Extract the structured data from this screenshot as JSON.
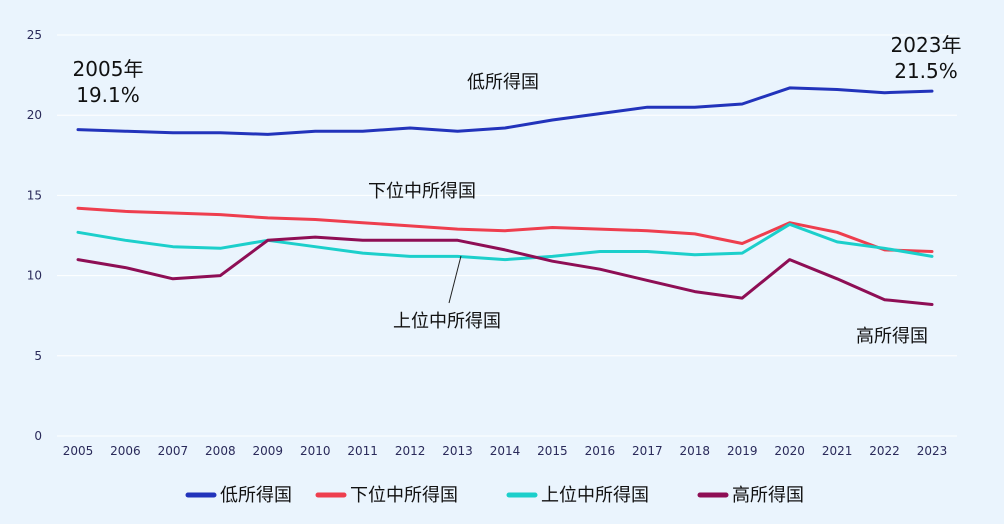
{
  "chart_data": {
    "type": "line",
    "title": "",
    "xlabel": "",
    "ylabel": "",
    "x": [
      2005,
      2006,
      2007,
      2008,
      2009,
      2010,
      2011,
      2012,
      2013,
      2014,
      2015,
      2016,
      2017,
      2018,
      2019,
      2020,
      2021,
      2022,
      2023
    ],
    "x_tick_labels": [
      "2005",
      "2006",
      "2007",
      "2008",
      "2009",
      "2010",
      "2011",
      "2012",
      "2013",
      "2014",
      "2015",
      "2016",
      "2017",
      "2018",
      "2019",
      "2020",
      "2021",
      "2022",
      "2023"
    ],
    "ylim": [
      0,
      25
    ],
    "y_ticks": [
      0,
      5,
      10,
      15,
      20,
      25
    ],
    "y_tick_labels": [
      "0",
      "5",
      "10",
      "15",
      "20",
      "25"
    ],
    "grid": "horizontal",
    "legend_position": "bottom",
    "series": [
      {
        "name": "低所得国",
        "color": "#2233bb",
        "values": [
          19.1,
          19.0,
          18.9,
          18.9,
          18.8,
          19.0,
          19.0,
          19.2,
          19.0,
          19.2,
          19.7,
          20.1,
          20.5,
          20.5,
          20.7,
          21.7,
          21.6,
          21.4,
          21.5
        ]
      },
      {
        "name": "下位中所得国",
        "color": "#ee3e4e",
        "values": [
          14.2,
          14.0,
          13.9,
          13.8,
          13.6,
          13.5,
          13.3,
          13.1,
          12.9,
          12.8,
          13.0,
          12.9,
          12.8,
          12.6,
          12.0,
          13.3,
          12.7,
          11.6,
          11.5
        ]
      },
      {
        "name": "上位中所得国",
        "color": "#1ccfcb",
        "values": [
          12.7,
          12.2,
          11.8,
          11.7,
          12.2,
          11.8,
          11.4,
          11.2,
          11.2,
          11.0,
          11.2,
          11.5,
          11.5,
          11.3,
          11.4,
          13.2,
          12.1,
          11.7,
          11.2
        ]
      },
      {
        "name": "高所得国",
        "color": "#8e0e55",
        "values": [
          11.0,
          10.5,
          9.8,
          10.0,
          12.2,
          12.4,
          12.2,
          12.2,
          12.2,
          11.6,
          10.9,
          10.4,
          9.7,
          9.0,
          8.6,
          11.0,
          9.8,
          8.5,
          8.2
        ]
      }
    ],
    "series_labels": [
      "低所得国",
      "下位中所得国",
      "上位中所得国",
      "高所得国"
    ],
    "annotations": {
      "start_year": "2005年",
      "start_value": "19.1%",
      "end_year": "2023年",
      "end_value": "21.5%"
    }
  }
}
